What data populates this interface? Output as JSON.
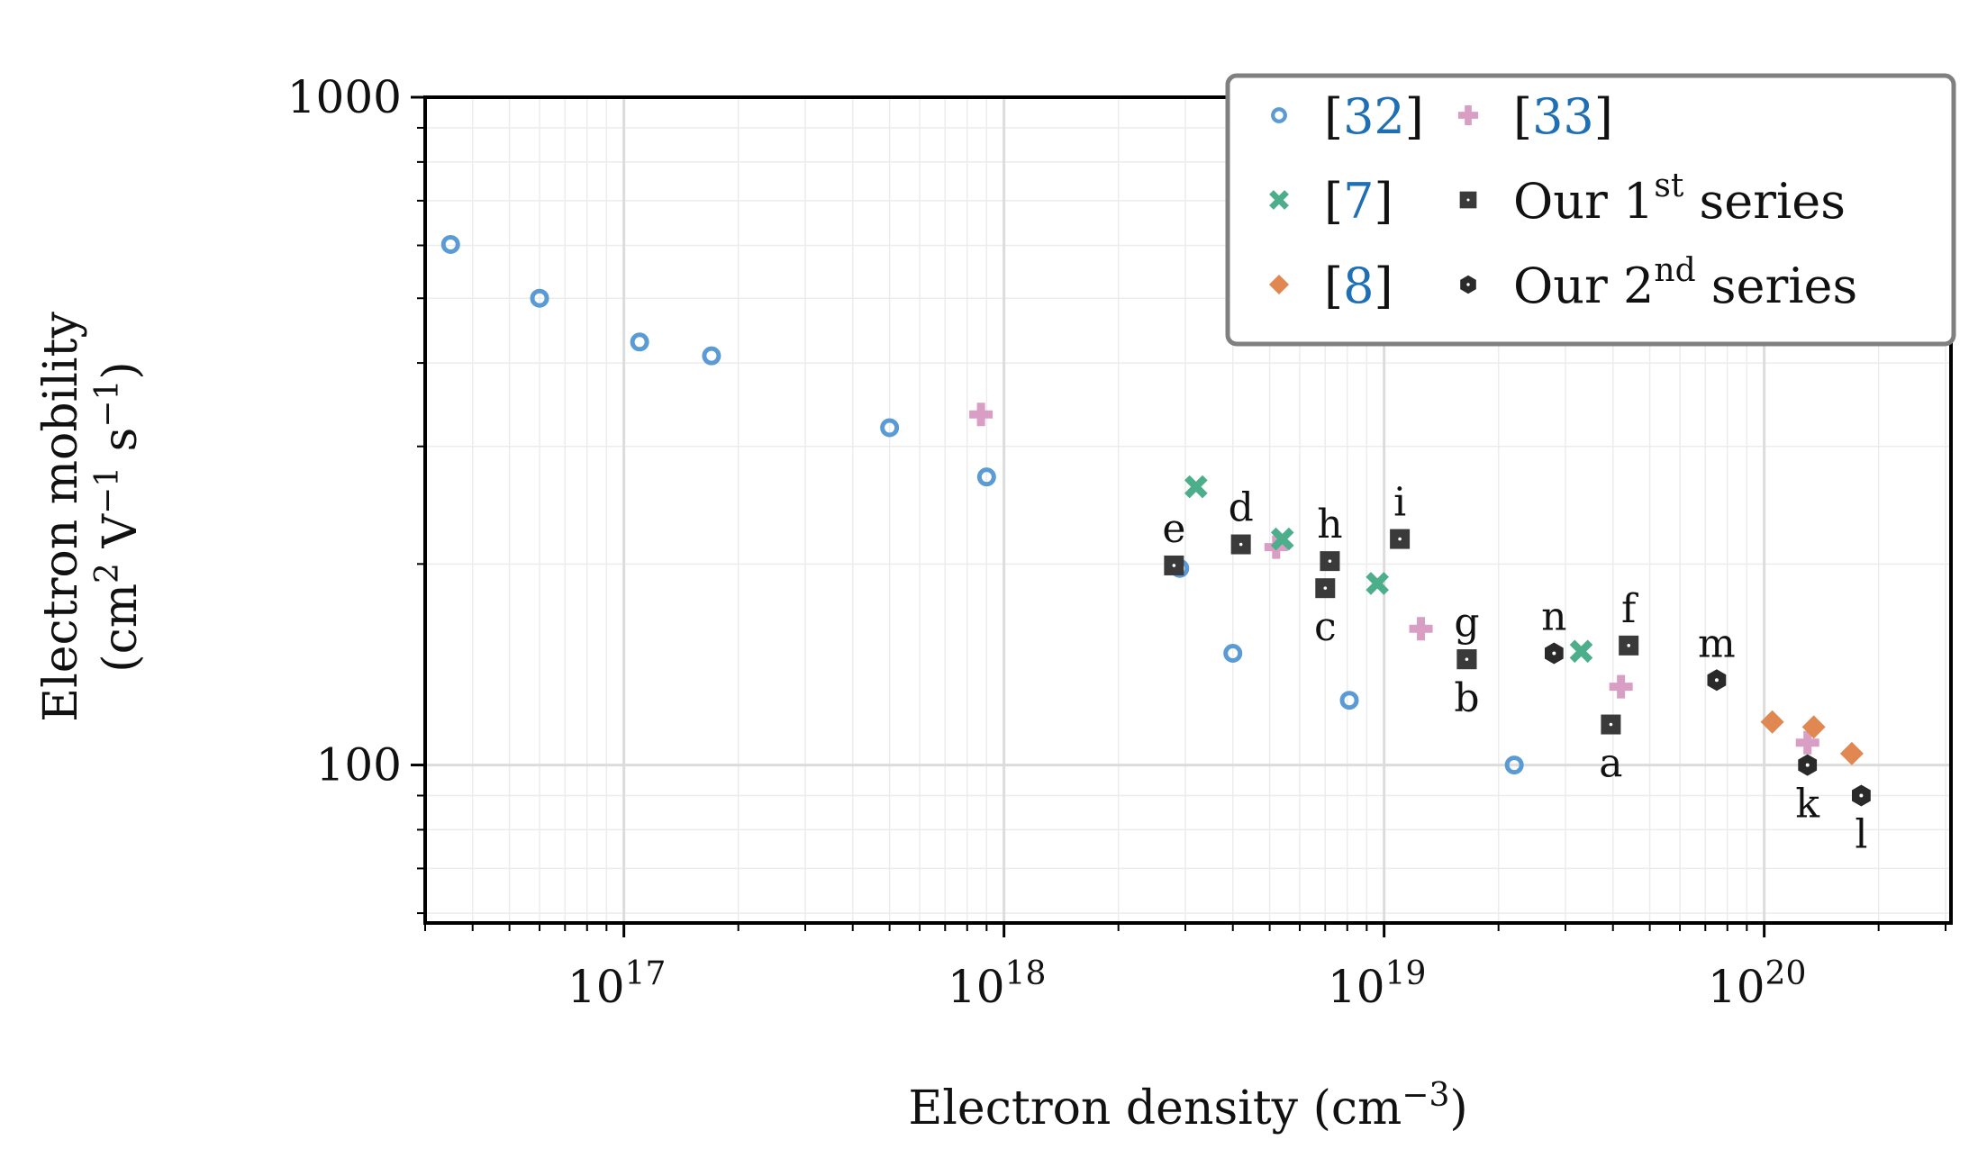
{
  "chart_data": {
    "type": "scatter",
    "xscale": "log",
    "yscale": "log",
    "xlim": [
      3e+16,
      3.1e+20
    ],
    "ylim": [
      58,
      1000
    ],
    "xlabel": "Electron density (cm",
    "xlabel_sup": "−3",
    "xlabel_close": ")",
    "ylabel_line1": "Electron mobility",
    "ylabel_line2": {
      "a": "(cm",
      "b": "2",
      "c": " V",
      "d": "−1",
      "e": " s",
      "f": "−1",
      "g": ")"
    },
    "xticks": [
      {
        "v": 1e+17,
        "base": "10",
        "exp": "17"
      },
      {
        "v": 1e+18,
        "base": "10",
        "exp": "18"
      },
      {
        "v": 1e+19,
        "base": "10",
        "exp": "19"
      },
      {
        "v": 1e+20,
        "base": "10",
        "exp": "20"
      }
    ],
    "yticks": [
      {
        "v": 100,
        "label": "100"
      },
      {
        "v": 1000,
        "label": "1000"
      }
    ],
    "grid": true,
    "legend_position": "top-right",
    "series": [
      {
        "key": "s32",
        "pre": "[",
        "name": "32",
        "post": "]",
        "marker": "ring",
        "color": "#5b9bd5",
        "points": [
          [
            3.5e+16,
            602
          ],
          [
            6e+16,
            500
          ],
          [
            1.1e+17,
            430
          ],
          [
            1.7e+17,
            410
          ],
          [
            5e+17,
            320
          ],
          [
            9e+17,
            270
          ],
          [
            2.9e+18,
            197
          ],
          [
            4e+18,
            147
          ],
          [
            8.1e+18,
            125
          ],
          [
            2.2e+19,
            100
          ]
        ]
      },
      {
        "key": "s33",
        "pre": "[",
        "name": "33",
        "post": "]",
        "marker": "plus",
        "color": "#d99ec4",
        "points": [
          [
            8.7e+17,
            335
          ],
          [
            5.2e+18,
            212
          ],
          [
            1.25e+19,
            160
          ],
          [
            4.2e+19,
            131
          ],
          [
            1.3e+20,
            108
          ]
        ]
      },
      {
        "key": "s7",
        "pre": "[",
        "name": "7",
        "post": "]",
        "marker": "x",
        "color": "#4cae8a",
        "points": [
          [
            3.2e+18,
            261
          ],
          [
            5.4e+18,
            218
          ],
          [
            9.6e+18,
            187
          ],
          [
            3.3e+19,
            148
          ]
        ]
      },
      {
        "key": "s8",
        "pre": "[",
        "name": "8",
        "post": "]",
        "marker": "diamond",
        "color": "#e08752",
        "points": [
          [
            1.05e+20,
            116
          ],
          [
            1.35e+20,
            114
          ],
          [
            1.7e+20,
            104
          ]
        ]
      },
      {
        "key": "ours1",
        "name_a": "Our 1",
        "name_sup": "st",
        "name_b": " series",
        "marker": "square",
        "color": "#3a3a3a",
        "points": [
          {
            "x": 2.8e+18,
            "y": 199,
            "label": "e",
            "lp": "above"
          },
          {
            "x": 4.2e+18,
            "y": 214,
            "label": "d",
            "lp": "above"
          },
          {
            "x": 7.2e+18,
            "y": 202,
            "label": "h",
            "lp": "above"
          },
          {
            "x": 7e+18,
            "y": 184,
            "label": "c",
            "lp": "below"
          },
          {
            "x": 1.1e+19,
            "y": 218,
            "label": "i",
            "lp": "above"
          },
          {
            "x": 1.65e+19,
            "y": 144,
            "label": "g",
            "lp": "above"
          },
          {
            "x": 1.65e+19,
            "y": 144,
            "label": "b",
            "lp": "below"
          },
          {
            "x": 4.4e+19,
            "y": 151,
            "label": "f",
            "lp": "above"
          },
          {
            "x": 3.95e+19,
            "y": 115,
            "label": "a",
            "lp": "below"
          }
        ]
      },
      {
        "key": "ours2",
        "name_a": "Our 2",
        "name_sup": "nd",
        "name_b": " series",
        "marker": "hexagon",
        "color": "#2a2a2a",
        "points": [
          {
            "x": 2.8e+19,
            "y": 147,
            "label": "n",
            "lp": "above"
          },
          {
            "x": 7.5e+19,
            "y": 134,
            "label": "m",
            "lp": "above"
          },
          {
            "x": 1.3e+20,
            "y": 100,
            "label": "k",
            "lp": "below"
          },
          {
            "x": 1.8e+20,
            "y": 90,
            "label": "l",
            "lp": "below"
          }
        ]
      }
    ]
  }
}
